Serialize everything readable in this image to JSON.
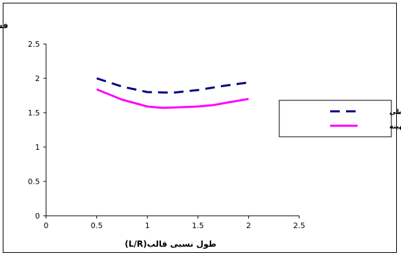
{
  "chart_data": {
    "type": "line",
    "ylabel": "فشار نسبی(P/Y)",
    "xlabel": "طول نسبی قالب(L/R)",
    "xlim": [
      0,
      2.5
    ],
    "ylim": [
      0,
      2.5
    ],
    "xticks": [
      "0",
      "0.5",
      "1",
      "1.5",
      "2",
      "2.5"
    ],
    "yticks": [
      "0",
      "0.5",
      "1",
      "1.5",
      "2",
      "2.5"
    ],
    "grid": false,
    "legend": "right",
    "series": [
      {
        "name": "قالب خطی",
        "color": "#000080",
        "style": "dashed",
        "x": [
          0.5,
          0.75,
          1.0,
          1.25,
          1.5,
          1.75,
          2.0
        ],
        "y": [
          2.0,
          1.88,
          1.8,
          1.79,
          1.83,
          1.89,
          1.94
        ]
      },
      {
        "name": "قالب غیر خطی بهینه",
        "color": "#ff00ff",
        "style": "solid",
        "x": [
          0.5,
          0.6,
          0.75,
          0.9,
          1.0,
          1.15,
          1.25,
          1.5,
          1.65,
          1.8,
          2.0
        ],
        "y": [
          1.84,
          1.78,
          1.69,
          1.63,
          1.59,
          1.57,
          1.575,
          1.59,
          1.61,
          1.65,
          1.7
        ]
      }
    ]
  }
}
